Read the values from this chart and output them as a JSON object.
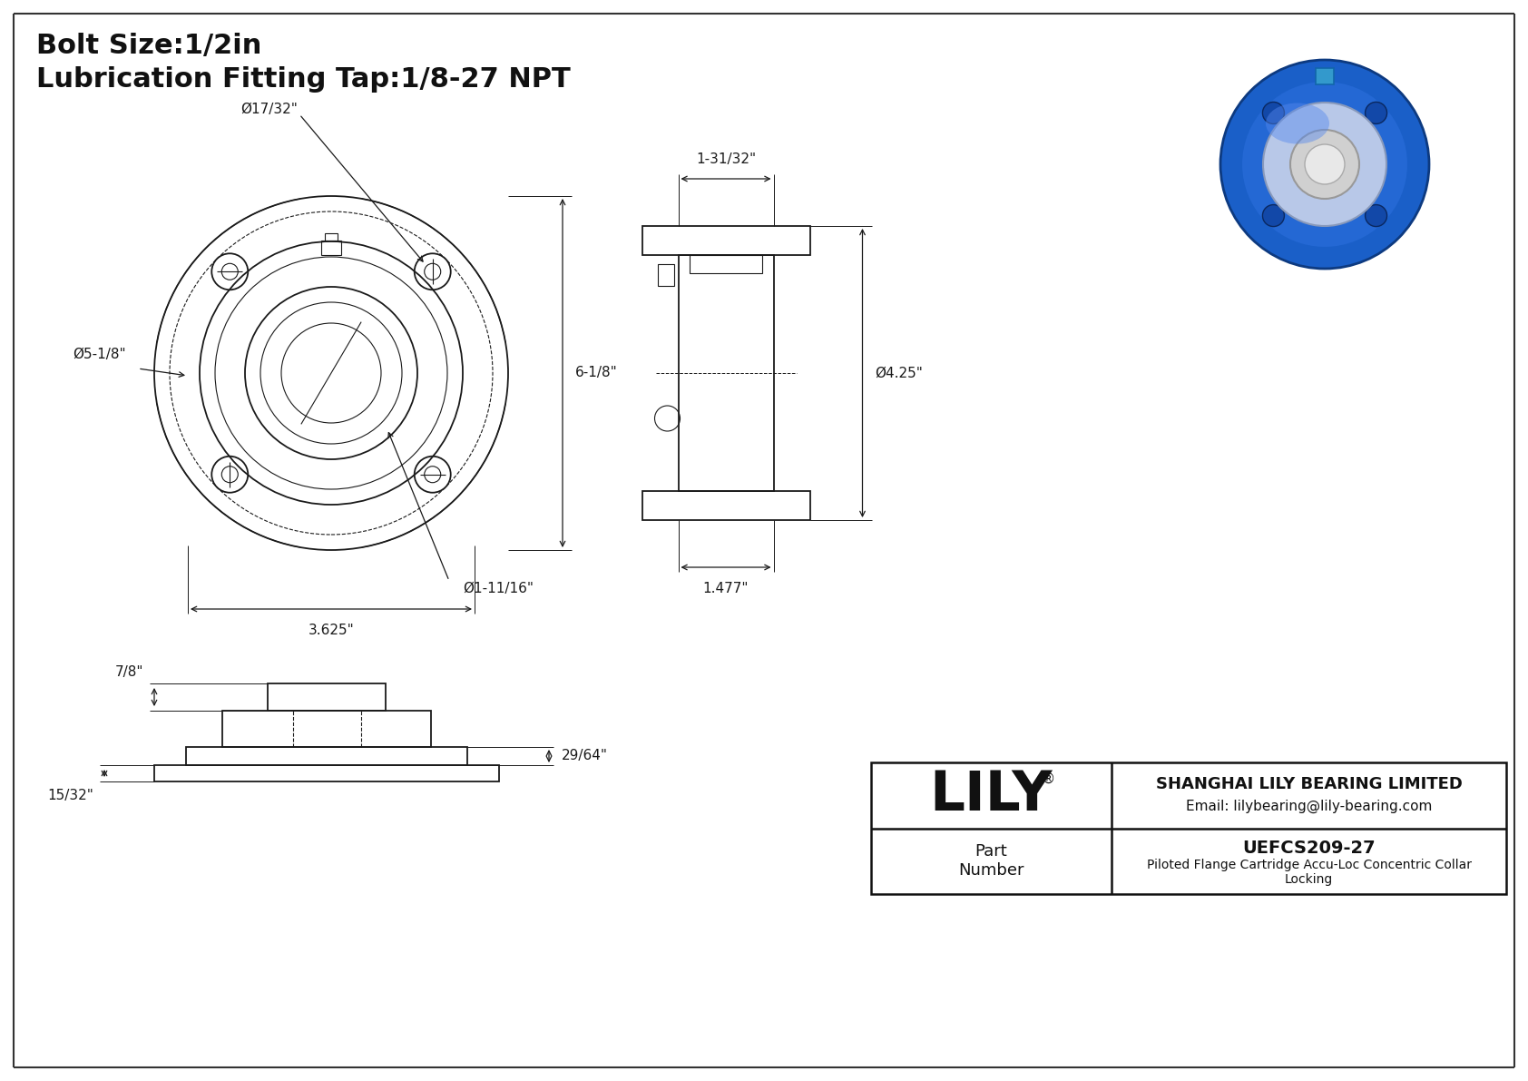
{
  "bg_color": "#ffffff",
  "line_color": "#1a1a1a",
  "dim_color": "#1a1a1a",
  "title_line1": "Bolt Size:1/2in",
  "title_line2": "Lubrication Fitting Tap:1/8-27 NPT",
  "title_fontsize": 22,
  "company_name": "SHANGHAI LILY BEARING LIMITED",
  "company_email": "Email: lilybearing@lily-bearing.com",
  "brand": "LILY",
  "brand_reg": "®",
  "part_label": "Part\nNumber",
  "part_number": "UEFCS209-27",
  "part_desc": "Piloted Flange Cartridge Accu-Loc Concentric Collar\nLocking",
  "dims": {
    "bolt_hole_dia": "Ø17/32\"",
    "bolt_circle_dia": "Ø5-1/8\"",
    "flange_dia": "6-1/8\"",
    "bolt_circle_span": "3.625\"",
    "bore_dia": "Ø1-11/16\"",
    "depth": "1-31/32\"",
    "height_side": "Ø4.25\"",
    "base_width": "1.477\"",
    "depth_bottom": "7/8\"",
    "step_height": "29/64\"",
    "base_height": "15/32\""
  }
}
